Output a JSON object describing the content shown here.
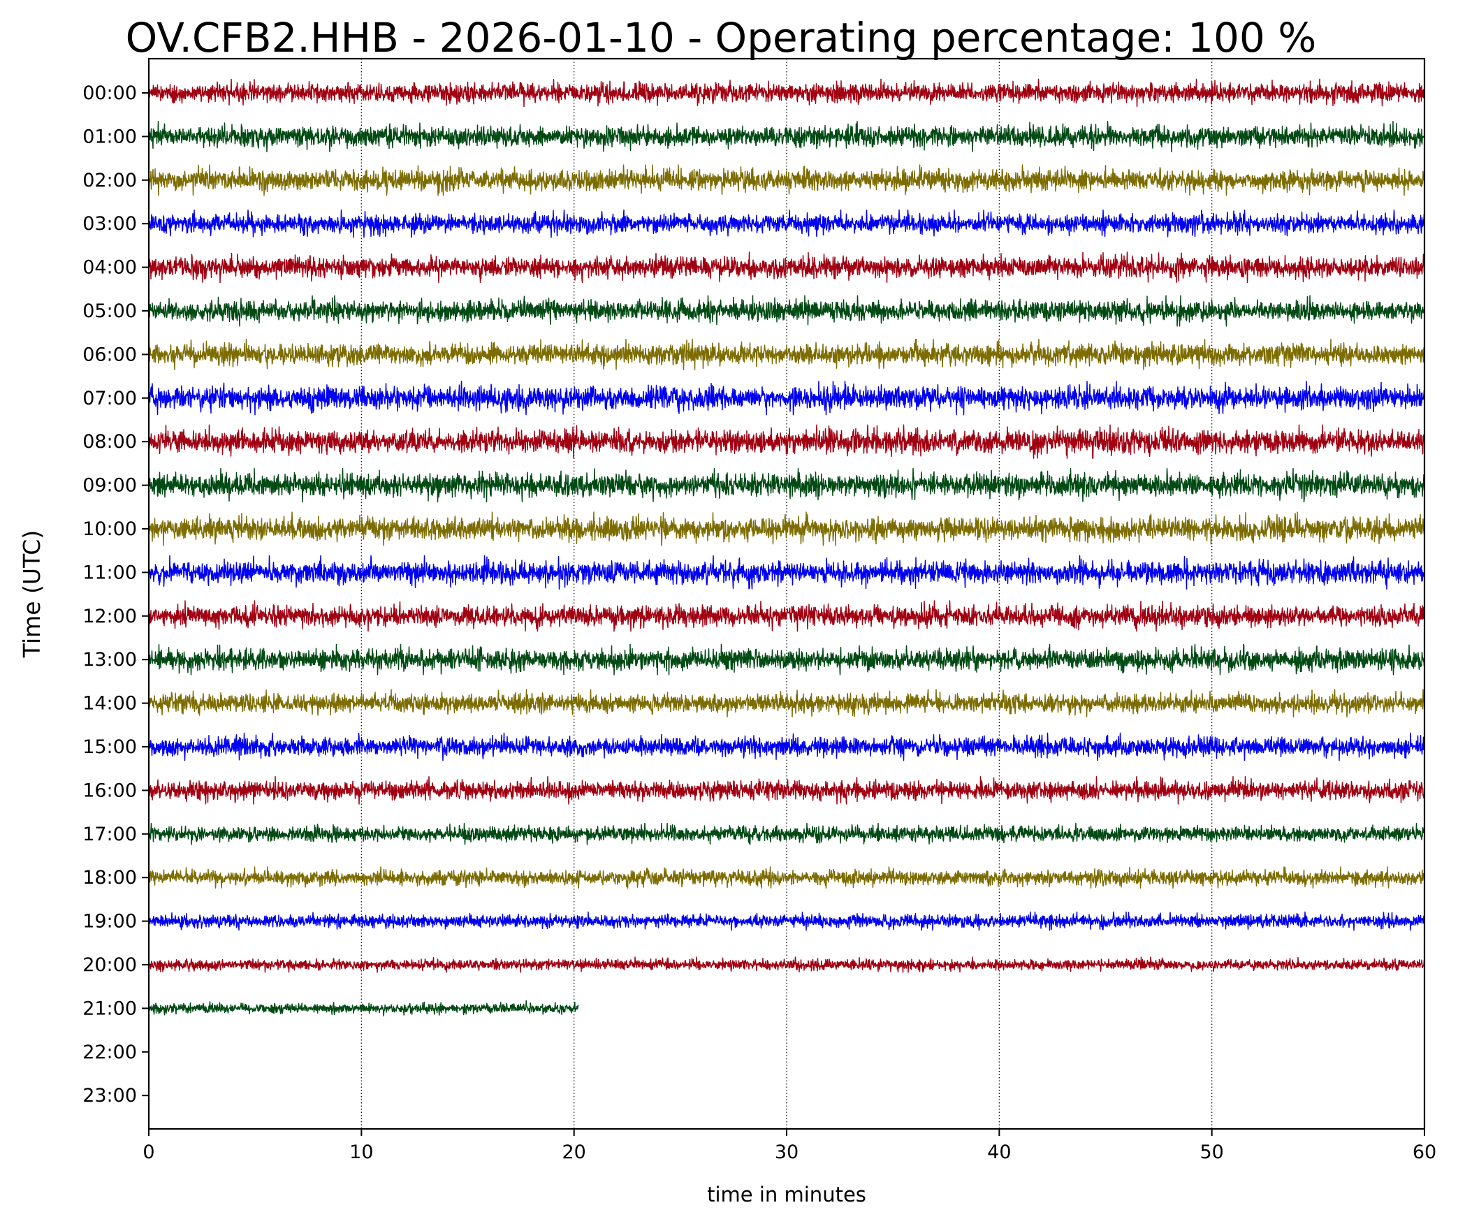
{
  "chart_data": {
    "type": "line",
    "title": "OV.CFB2.HHB - 2026-01-10 - Operating percentage: 100 %",
    "xlabel": "time in minutes",
    "ylabel": "Time (UTC)",
    "xlim": [
      0,
      60
    ],
    "x_ticks": [
      "0",
      "10",
      "20",
      "30",
      "40",
      "50",
      "60"
    ],
    "y_ticks": [
      "00:00",
      "01:00",
      "02:00",
      "03:00",
      "04:00",
      "05:00",
      "06:00",
      "07:00",
      "08:00",
      "09:00",
      "10:00",
      "11:00",
      "12:00",
      "13:00",
      "14:00",
      "15:00",
      "16:00",
      "17:00",
      "18:00",
      "19:00",
      "20:00",
      "21:00",
      "22:00",
      "23:00"
    ],
    "grid": "vertical dotted lines at x ticks",
    "color_cycle": [
      "#a00012",
      "#004a14",
      "#7d6c00",
      "#0000f0"
    ],
    "series": [
      {
        "hour": "00:00",
        "start_min": 0,
        "end_min": 60,
        "relative_amplitude": 0.9
      },
      {
        "hour": "01:00",
        "start_min": 0,
        "end_min": 60,
        "relative_amplitude": 1.0
      },
      {
        "hour": "02:00",
        "start_min": 0,
        "end_min": 60,
        "relative_amplitude": 1.0
      },
      {
        "hour": "03:00",
        "start_min": 0,
        "end_min": 60,
        "relative_amplitude": 0.9
      },
      {
        "hour": "04:00",
        "start_min": 0,
        "end_min": 60,
        "relative_amplitude": 1.0
      },
      {
        "hour": "05:00",
        "start_min": 0,
        "end_min": 60,
        "relative_amplitude": 1.0
      },
      {
        "hour": "06:00",
        "start_min": 0,
        "end_min": 60,
        "relative_amplitude": 1.0
      },
      {
        "hour": "07:00",
        "start_min": 0,
        "end_min": 60,
        "relative_amplitude": 1.1
      },
      {
        "hour": "08:00",
        "start_min": 0,
        "end_min": 60,
        "relative_amplitude": 1.1
      },
      {
        "hour": "09:00",
        "start_min": 0,
        "end_min": 60,
        "relative_amplitude": 1.1
      },
      {
        "hour": "10:00",
        "start_min": 0,
        "end_min": 60,
        "relative_amplitude": 1.1
      },
      {
        "hour": "11:00",
        "start_min": 0,
        "end_min": 60,
        "relative_amplitude": 1.1
      },
      {
        "hour": "12:00",
        "start_min": 0,
        "end_min": 60,
        "relative_amplitude": 1.0
      },
      {
        "hour": "13:00",
        "start_min": 0,
        "end_min": 60,
        "relative_amplitude": 1.0
      },
      {
        "hour": "14:00",
        "start_min": 0,
        "end_min": 60,
        "relative_amplitude": 0.9
      },
      {
        "hour": "15:00",
        "start_min": 0,
        "end_min": 60,
        "relative_amplitude": 0.9
      },
      {
        "hour": "16:00",
        "start_min": 0,
        "end_min": 60,
        "relative_amplitude": 0.9
      },
      {
        "hour": "17:00",
        "start_min": 0,
        "end_min": 60,
        "relative_amplitude": 0.7
      },
      {
        "hour": "18:00",
        "start_min": 0,
        "end_min": 60,
        "relative_amplitude": 0.7
      },
      {
        "hour": "19:00",
        "start_min": 0,
        "end_min": 60,
        "relative_amplitude": 0.6
      },
      {
        "hour": "20:00",
        "start_min": 0,
        "end_min": 60,
        "relative_amplitude": 0.5
      },
      {
        "hour": "21:00",
        "start_min": 0,
        "end_min": 20.2,
        "relative_amplitude": 0.5
      }
    ]
  }
}
